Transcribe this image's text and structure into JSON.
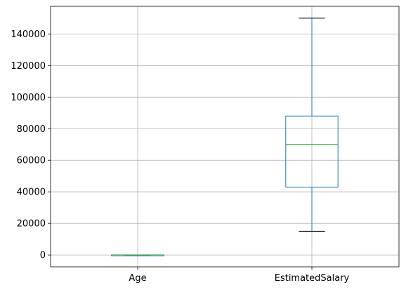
{
  "chart_data": {
    "type": "box",
    "categories": [
      "Age",
      "EstimatedSalary"
    ],
    "boxes": [
      {
        "category": "Age",
        "whisker_low": 18,
        "q1": 29.75,
        "median": 37,
        "q3": 46,
        "whisker_high": 60
      },
      {
        "category": "EstimatedSalary",
        "whisker_low": 15000,
        "q1": 43000,
        "median": 70000,
        "q3": 88000,
        "whisker_high": 150000
      }
    ],
    "y_ticks": [
      0,
      20000,
      40000,
      60000,
      80000,
      100000,
      120000,
      140000
    ],
    "ylim": [
      -7500,
      157500
    ],
    "grid": true,
    "colors": {
      "box": "#1f77b4",
      "median": "#2ca02c",
      "cap": "#000000",
      "grid": "#b0b0b0",
      "axis": "#000000"
    }
  }
}
